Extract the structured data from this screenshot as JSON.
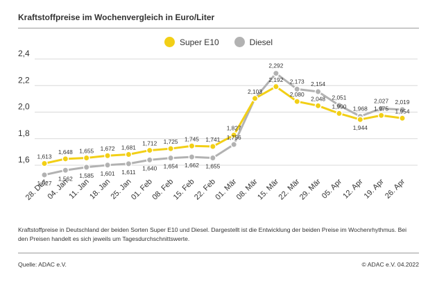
{
  "title": "Kraftstoffpreise im Wochenvergleich in Euro/Liter",
  "description": "Kraftstoffpreise in Deutschland der beiden Sorten Super E10 und Diesel. Dargestellt ist die Entwicklung der beiden Preise im Wochenrhythmus. Bei den Preisen handelt es sich jeweils um Tagesdurchschnittswerte.",
  "source": "Quelle: ADAC e.V.",
  "copyright": "© ADAC e.V. 04.2022",
  "colors": {
    "super_e10": "#f2cf16",
    "diesel": "#b2b2b2",
    "grid": "#d9d9d9"
  },
  "chart_data": {
    "type": "line",
    "title": "Kraftstoffpreise im Wochenvergleich in Euro/Liter",
    "xlabel": "",
    "ylabel": "",
    "ylim": [
      1.48,
      2.4
    ],
    "yticks": [
      "1,6",
      "1,8",
      "2,0",
      "2,2",
      "2,4"
    ],
    "ytick_values": [
      1.6,
      1.8,
      2.0,
      2.2,
      2.4
    ],
    "grid": true,
    "legend_position": "top-center",
    "categories": [
      "28. Dez",
      "04. Jan",
      "11. Jan",
      "18. Jan",
      "25. Jan",
      "01. Feb",
      "08. Feb",
      "15. Feb",
      "22. Feb",
      "01. Mär",
      "08. Mär",
      "15. Mär",
      "22. Mär",
      "29. Mär",
      "05. Apr",
      "12. Apr",
      "19. Apr",
      "26. Apr"
    ],
    "series": [
      {
        "name": "Super E10",
        "values": [
          1.613,
          1.648,
          1.655,
          1.672,
          1.681,
          1.712,
          1.725,
          1.745,
          1.741,
          1.827,
          2.103,
          2.192,
          2.08,
          2.048,
          1.99,
          1.944,
          1.975,
          1.954
        ],
        "labels": [
          "1,613",
          "1,648",
          "1,655",
          "1,672",
          "1,681",
          "1,712",
          "1,725",
          "1,745",
          "1,741",
          "1,827",
          "2,103",
          "2,192",
          "2,080",
          "2,048",
          "1,990",
          "1,944",
          "1,975",
          "1,954"
        ]
      },
      {
        "name": "Diesel",
        "values": [
          1.527,
          1.562,
          1.585,
          1.601,
          1.611,
          1.64,
          1.654,
          1.662,
          1.655,
          1.756,
          2.103,
          2.292,
          2.173,
          2.154,
          2.051,
          1.968,
          2.027,
          2.019
        ],
        "labels": [
          "1,527",
          "1,562",
          "1,585",
          "1,601",
          "1,611",
          "1,640",
          "1,654",
          "1,662",
          "1,655",
          "1,756",
          "",
          "2,292",
          "2,173",
          "2,154",
          "2,051",
          "1,968",
          "2,027",
          "2,019"
        ]
      }
    ]
  }
}
